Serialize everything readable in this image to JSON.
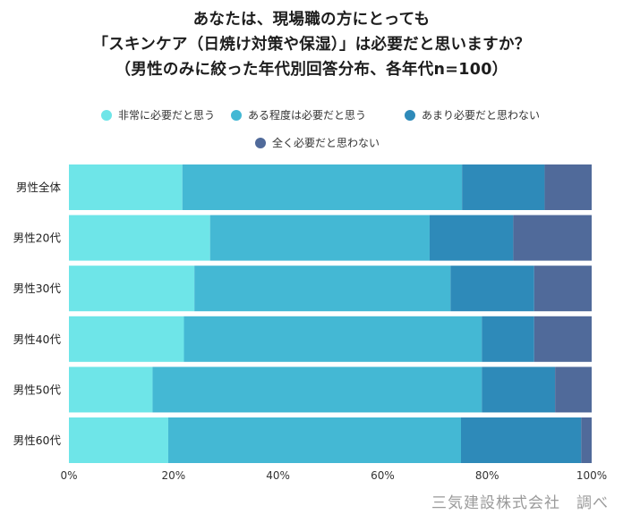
{
  "title_lines": [
    "あなたは、現場職の方にとっても",
    "「スキンケア（日焼け対策や保湿）」は必要だと思いますか？",
    "（男性のみに絞った年代別回答分布、各年代n=100）"
  ],
  "credit": "三気建設株式会社　調べ",
  "chart_data": {
    "type": "bar",
    "orientation": "horizontal",
    "stacked": true,
    "percent_stacked": true,
    "title": "あなたは、現場職の方にとっても「スキンケア（日焼け対策や保湿）」は必要だと思いますか？（男性のみに絞った年代別回答分布、各年代n=100）",
    "categories": [
      "男性全体",
      "男性20代",
      "男性30代",
      "男性40代",
      "男性50代",
      "男性60代"
    ],
    "series": [
      {
        "name": "非常に必要だと思う",
        "color": "#6ee5e8",
        "values": [
          21.7,
          27,
          24,
          22,
          16,
          19
        ]
      },
      {
        "name": "ある程度は必要だと思う",
        "color": "#44b8d4",
        "values": [
          53.5,
          42,
          49,
          57,
          63,
          56
        ]
      },
      {
        "name": "あまり必要だと思わない",
        "color": "#2e8ab9",
        "values": [
          15.8,
          16,
          16,
          10,
          14,
          23
        ]
      },
      {
        "name": "全く必要だと思わない",
        "color": "#506a9a",
        "values": [
          9.0,
          15,
          11,
          11,
          7,
          2
        ]
      }
    ],
    "xlim": [
      0,
      100
    ],
    "x_ticks": [
      "0%",
      "20%",
      "40%",
      "60%",
      "80%",
      "100%"
    ],
    "legend_position": "top",
    "grid": false
  }
}
